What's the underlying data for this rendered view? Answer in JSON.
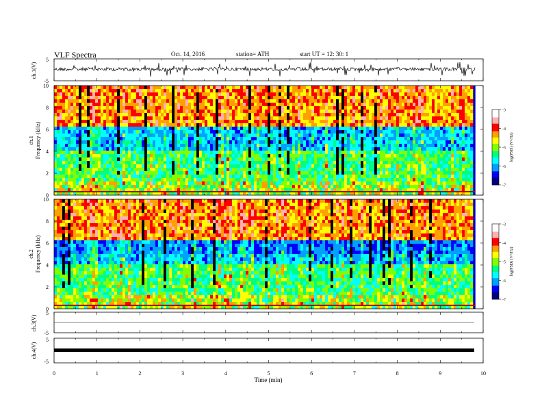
{
  "header": {
    "title": "VLF  Spectra",
    "date": "Oct. 14, 2016",
    "station": "station= ATH",
    "start_ut": "start  UT =    12: 30: 1"
  },
  "panels": {
    "ch1_wave": {
      "label": "ch.1(V)",
      "yticks": [
        "5",
        "-5"
      ]
    },
    "ch1_spec": {
      "label_top": "ch.1",
      "label": "Frequency  (kHz)",
      "yticks": [
        "0",
        "2",
        "4",
        "6",
        "8",
        "10"
      ]
    },
    "ch2_spec": {
      "label_top": "ch.2",
      "label": "Frequency  (kHz)",
      "yticks": [
        "0",
        "2",
        "4",
        "6",
        "8",
        "10"
      ]
    },
    "ch3_wave": {
      "label": "ch.3(V)",
      "yticks": [
        "5",
        "-5"
      ]
    },
    "ch4_wave": {
      "label": "ch.4(V)",
      "yticks": [
        "5",
        "-5"
      ]
    }
  },
  "colorbar": {
    "label": "log(PSD) (V²/Hz)",
    "ticks": [
      "-3",
      "-4",
      "-5",
      "-6",
      "-7"
    ],
    "colors": [
      "#000080",
      "#0000ff",
      "#00a0ff",
      "#00ffff",
      "#00ff80",
      "#80ff00",
      "#ffff00",
      "#ffa000",
      "#ff0000",
      "#ffb0b0",
      "#ffffff"
    ]
  },
  "xaxis": {
    "label": "Time  (min)",
    "ticks": [
      "0",
      "1",
      "2",
      "3",
      "4",
      "5",
      "6",
      "7",
      "8",
      "9",
      "10"
    ]
  },
  "chart_data": {
    "type": "heatmap",
    "x": {
      "label": "Time  (min)",
      "range": [
        0,
        10
      ],
      "data_end": 9.82
    },
    "panels": [
      {
        "name": "ch.1(V)",
        "type": "line",
        "ylim": [
          -5,
          5
        ]
      },
      {
        "name": "ch.1",
        "type": "heatmap",
        "ylabel": "Frequency  (kHz)",
        "ylim": [
          0,
          10
        ],
        "zlabel": "log(PSD) (V²/Hz)",
        "zlim": [
          -7,
          -3
        ]
      },
      {
        "name": "ch.2",
        "type": "heatmap",
        "ylabel": "Frequency  (kHz)",
        "ylim": [
          0,
          10
        ],
        "zlabel": "log(PSD) (V²/Hz)",
        "zlim": [
          -7,
          -3
        ]
      },
      {
        "name": "ch.3(V)",
        "type": "line",
        "ylim": [
          -5,
          5
        ]
      },
      {
        "name": "ch.4(V)",
        "type": "line",
        "ylim": [
          -5,
          5
        ]
      }
    ]
  }
}
